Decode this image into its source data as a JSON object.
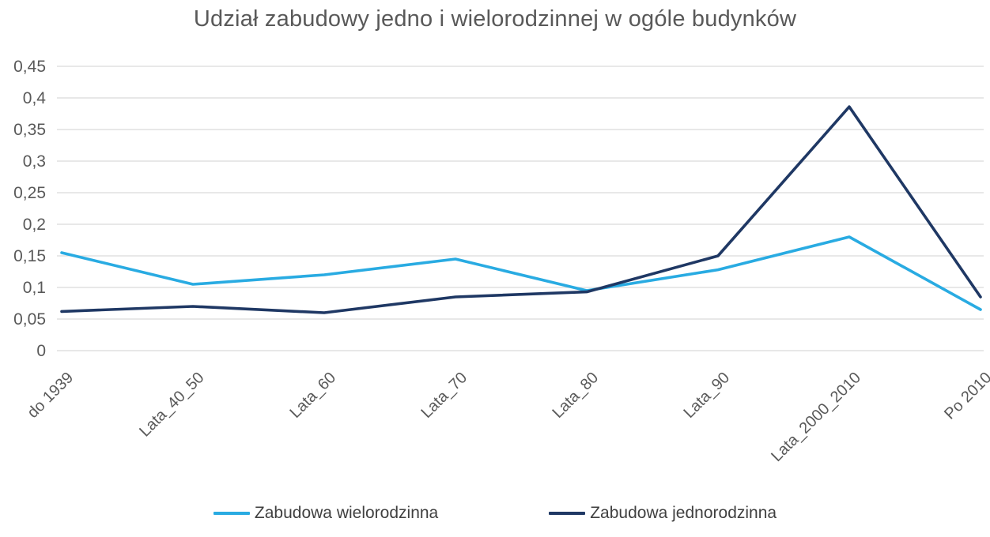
{
  "title": "Udział zabudowy jedno i wielorodzinnej w ogóle budynków",
  "colors": {
    "series_multi_family": "#29ABE2",
    "series_single_family": "#1F3864",
    "gridline": "#D9D9D9",
    "axis_text": "#595959",
    "legend_text": "#404040",
    "background": "#FFFFFF"
  },
  "chart_data": {
    "type": "line",
    "title": "Udział zabudowy jedno i wielorodzinnej w ogóle budynków",
    "categories": [
      "do 1939",
      "Lata_40_50",
      "Lata_60",
      "Lata_70",
      "Lata_80",
      "Lata_90",
      "Lata_2000_2010",
      "Po 2010"
    ],
    "series": [
      {
        "name": "Zabudowa wielorodzinna",
        "color": "#29ABE2",
        "values": [
          0.155,
          0.105,
          0.12,
          0.145,
          0.095,
          0.128,
          0.18,
          0.065
        ]
      },
      {
        "name": "Zabudowa jednorodzinna",
        "color": "#1F3864",
        "values": [
          0.062,
          0.07,
          0.06,
          0.085,
          0.093,
          0.15,
          0.386,
          0.085
        ]
      }
    ],
    "xlabel": "",
    "ylabel": "",
    "ylim": [
      0,
      0.45
    ],
    "ytick_step": 0.05,
    "ytick_labels": [
      "0",
      "0,05",
      "0,1",
      "0,15",
      "0,2",
      "0,25",
      "0,3",
      "0,35",
      "0,4",
      "0,45"
    ],
    "decimal_separator": ",",
    "grid": "horizontal",
    "legend_position": "bottom",
    "x_label_rotation_deg": 45
  },
  "legend": {
    "items": [
      {
        "label": "Zabudowa wielorodzinna",
        "color": "#29ABE2"
      },
      {
        "label": "Zabudowa jednorodzinna",
        "color": "#1F3864"
      }
    ]
  }
}
